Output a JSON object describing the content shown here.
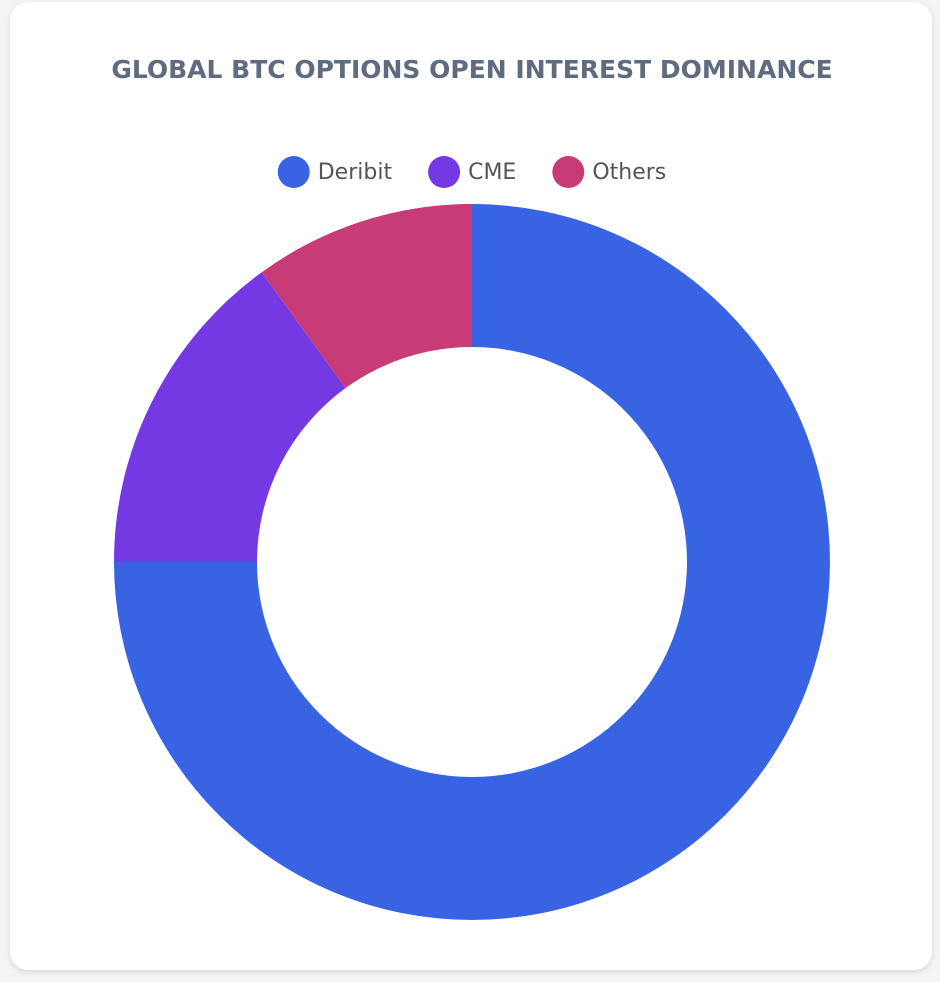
{
  "chart_data": {
    "type": "pie",
    "title": "GLOBAL BTC OPTIONS OPEN INTEREST DOMINANCE",
    "categories": [
      "Deribit",
      "CME",
      "Others"
    ],
    "values": [
      75,
      15,
      10
    ],
    "colors": [
      "#3864e3",
      "#7539e4",
      "#c93b76"
    ],
    "donut": true
  }
}
